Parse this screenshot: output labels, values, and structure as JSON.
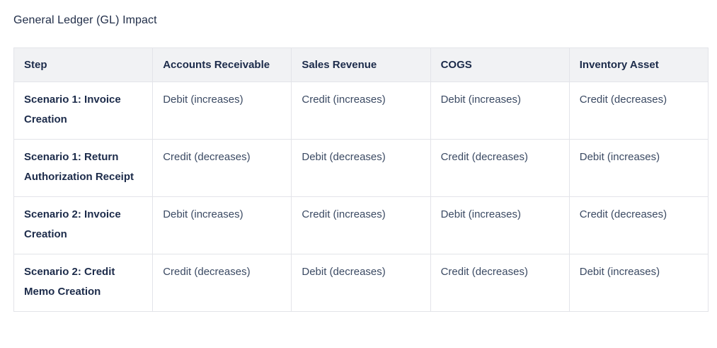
{
  "page": {
    "title": "General Ledger (GL) Impact"
  },
  "colors": {
    "heading_text": "#1c2b4a",
    "body_text": "#3b4a63",
    "header_background": "#f1f2f4",
    "border": "#e3e4e9",
    "page_background": "#ffffff"
  },
  "table": {
    "columns": [
      "Step",
      "Accounts Receivable",
      "Sales Revenue",
      "COGS",
      "Inventory Asset"
    ],
    "rows": [
      {
        "step": "Scenario 1: Invoice Creation",
        "cells": [
          "Debit (increases)",
          "Credit (increases)",
          "Debit (increases)",
          "Credit (decreases)"
        ]
      },
      {
        "step": "Scenario 1: Return Authorization Receipt",
        "cells": [
          "Credit (decreases)",
          "Debit (decreases)",
          "Credit (decreases)",
          "Debit (increases)"
        ]
      },
      {
        "step": "Scenario 2: Invoice Creation",
        "cells": [
          "Debit (increases)",
          "Credit (increases)",
          "Debit (increases)",
          "Credit (decreases)"
        ]
      },
      {
        "step": "Scenario 2: Credit Memo Creation",
        "cells": [
          "Credit (decreases)",
          "Debit (decreases)",
          "Credit (decreases)",
          "Debit (increases)"
        ]
      }
    ]
  }
}
